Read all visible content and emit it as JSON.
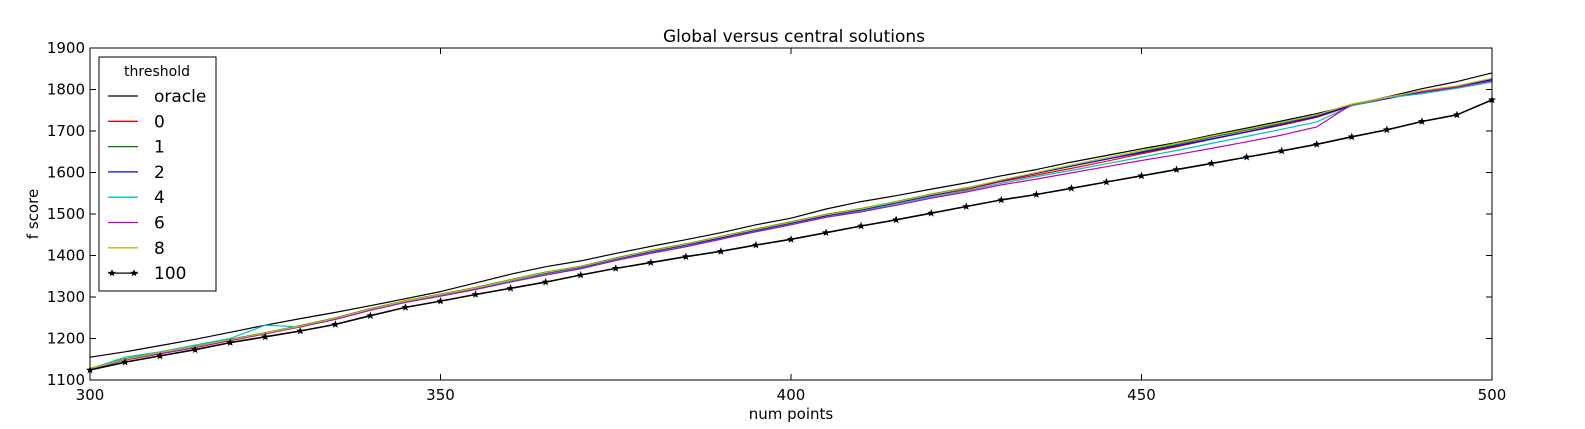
{
  "chart_data": {
    "type": "line",
    "title": "Global versus central solutions",
    "xlabel": "num points",
    "ylabel": "f score",
    "xlim": [
      300,
      500
    ],
    "ylim": [
      1100,
      1900
    ],
    "xticks": [
      "300",
      "350",
      "400",
      "450",
      "500"
    ],
    "yticks": [
      "1100",
      "1200",
      "1300",
      "1400",
      "1500",
      "1600",
      "1700",
      "1800",
      "1900"
    ],
    "grid": false,
    "legend": {
      "title": "threshold",
      "position": "top-left",
      "entries": [
        "oracle",
        "0",
        "1",
        "2",
        "4",
        "6",
        "8",
        "100"
      ]
    },
    "x": [
      300,
      305,
      310,
      315,
      320,
      325,
      330,
      335,
      340,
      345,
      350,
      355,
      360,
      365,
      370,
      375,
      380,
      385,
      390,
      395,
      400,
      405,
      410,
      415,
      420,
      425,
      430,
      435,
      440,
      445,
      450,
      455,
      460,
      465,
      470,
      475,
      480,
      485,
      490,
      495,
      500
    ],
    "series": [
      {
        "name": "oracle",
        "color": "#000000",
        "marker": "none",
        "values": [
          1155,
          1168,
          1183,
          1198,
          1215,
          1232,
          1248,
          1263,
          1279,
          1296,
          1313,
          1334,
          1355,
          1373,
          1387,
          1405,
          1422,
          1438,
          1455,
          1474,
          1490,
          1512,
          1530,
          1544,
          1560,
          1575,
          1592,
          1607,
          1625,
          1641,
          1657,
          1672,
          1690,
          1707,
          1724,
          1742,
          1762,
          1782,
          1802,
          1819,
          1840
        ]
      },
      {
        "name": "0",
        "color": "#ff0000",
        "marker": "none",
        "values": [
          1125,
          1150,
          1165,
          1180,
          1196,
          1212,
          1230,
          1248,
          1270,
          1290,
          1305,
          1322,
          1340,
          1358,
          1372,
          1392,
          1410,
          1426,
          1443,
          1462,
          1479,
          1497,
          1510,
          1526,
          1544,
          1559,
          1578,
          1594,
          1610,
          1627,
          1645,
          1662,
          1680,
          1697,
          1714,
          1733,
          1761,
          1778,
          1793,
          1805,
          1823
        ]
      },
      {
        "name": "1",
        "color": "#008000",
        "marker": "none",
        "values": [
          1128,
          1151,
          1167,
          1182,
          1198,
          1214,
          1231,
          1250,
          1272,
          1291,
          1307,
          1323,
          1342,
          1360,
          1374,
          1394,
          1412,
          1428,
          1446,
          1464,
          1481,
          1499,
          1513,
          1530,
          1548,
          1563,
          1581,
          1598,
          1615,
          1632,
          1650,
          1667,
          1685,
          1702,
          1719,
          1738,
          1764,
          1780,
          1796,
          1808,
          1826
        ]
      },
      {
        "name": "2",
        "color": "#0000ff",
        "marker": "none",
        "values": [
          1126,
          1149,
          1164,
          1179,
          1197,
          1213,
          1229,
          1249,
          1271,
          1289,
          1304,
          1320,
          1339,
          1356,
          1371,
          1391,
          1409,
          1425,
          1442,
          1460,
          1477,
          1495,
          1509,
          1527,
          1545,
          1561,
          1580,
          1598,
          1616,
          1632,
          1648,
          1664,
          1681,
          1698,
          1716,
          1735,
          1762,
          1778,
          1794,
          1806,
          1824
        ]
      },
      {
        "name": "4",
        "color": "#00bfbf",
        "marker": "none",
        "values": [
          1127,
          1155,
          1168,
          1184,
          1200,
          1232,
          1228,
          1247,
          1269,
          1288,
          1303,
          1319,
          1338,
          1355,
          1369,
          1389,
          1406,
          1422,
          1440,
          1458,
          1475,
          1493,
          1507,
          1524,
          1541,
          1556,
          1574,
          1590,
          1605,
          1621,
          1637,
          1653,
          1670,
          1687,
          1704,
          1722,
          1761,
          1780,
          1790,
          1803,
          1818
        ]
      },
      {
        "name": "6",
        "color": "#bf00bf",
        "marker": "none",
        "values": [
          1126,
          1148,
          1163,
          1178,
          1195,
          1211,
          1228,
          1246,
          1268,
          1287,
          1302,
          1318,
          1336,
          1353,
          1368,
          1388,
          1405,
          1421,
          1439,
          1457,
          1474,
          1492,
          1505,
          1521,
          1538,
          1553,
          1570,
          1584,
          1599,
          1614,
          1629,
          1643,
          1658,
          1674,
          1690,
          1710,
          1764,
          1782,
          1795,
          1806,
          1821
        ]
      },
      {
        "name": "8",
        "color": "#bfbf00",
        "marker": "none",
        "values": [
          1127,
          1150,
          1166,
          1181,
          1197,
          1213,
          1230,
          1249,
          1271,
          1290,
          1306,
          1322,
          1341,
          1359,
          1373,
          1393,
          1411,
          1427,
          1445,
          1463,
          1480,
          1498,
          1512,
          1529,
          1547,
          1562,
          1582,
          1600,
          1618,
          1636,
          1653,
          1670,
          1688,
          1704,
          1721,
          1739,
          1765,
          1781,
          1797,
          1809,
          1827
        ]
      },
      {
        "name": "100",
        "color": "#000000",
        "marker": "star",
        "values": [
          1124,
          1143,
          1158,
          1173,
          1190,
          1204,
          1218,
          1234,
          1255,
          1275,
          1290,
          1306,
          1321,
          1336,
          1353,
          1369,
          1383,
          1397,
          1410,
          1425,
          1439,
          1455,
          1471,
          1486,
          1502,
          1518,
          1534,
          1547,
          1562,
          1577,
          1592,
          1607,
          1622,
          1637,
          1652,
          1668,
          1686,
          1703,
          1723,
          1739,
          1775
        ]
      }
    ]
  }
}
